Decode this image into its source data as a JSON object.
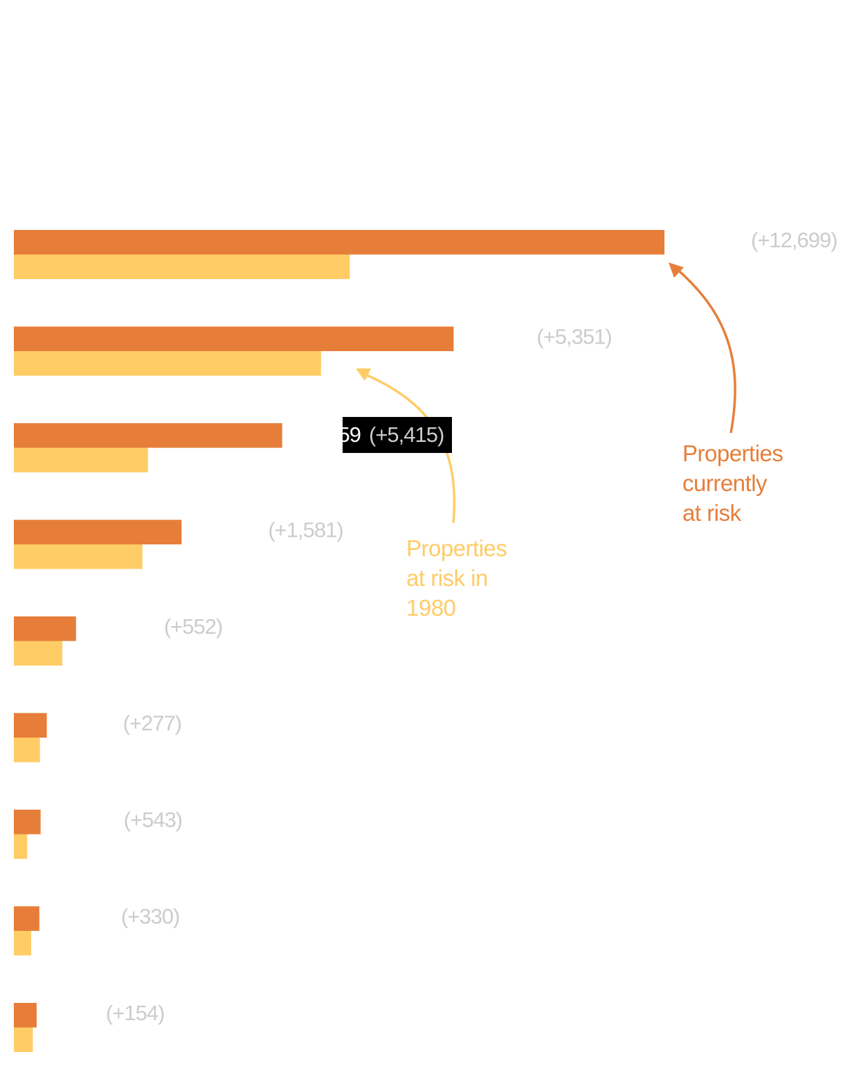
{
  "colors": {
    "current": "#e67e3a",
    "y1980": "#ffcc66",
    "diff_label": "#cccccc",
    "tooltip_bg": "#000000",
    "tooltip_value": "#ffffff",
    "tooltip_diff": "#cccccc"
  },
  "annotations": {
    "current": [
      "Properties",
      "currently",
      "at risk"
    ],
    "y1980": [
      "Properties",
      "at risk in",
      "1980"
    ]
  },
  "tooltip": {
    "row": 2,
    "value_fragment": "59",
    "diff": "(+5,415)"
  },
  "chart_data": {
    "type": "bar",
    "orientation": "horizontal",
    "categories": [
      "",
      "",
      "",
      "",
      "",
      "",
      "",
      "",
      ""
    ],
    "series": [
      {
        "name": "Properties currently at risk",
        "values": [
          26260,
          17750,
          10830,
          6770,
          2510,
          1330,
          1080,
          1030,
          920
        ]
      },
      {
        "name": "Properties at risk in 1980",
        "values": [
          13561,
          12399,
          5415,
          5189,
          1958,
          1053,
          537,
          700,
          766
        ]
      }
    ],
    "labels": [
      "(+12,699)",
      "(+5,351)",
      "(+5,415)",
      "(+1,581)",
      "(+552)",
      "(+277)",
      "(+543)",
      "(+330)",
      "(+154)"
    ],
    "xlim": [
      0,
      26260
    ],
    "grid": false,
    "legend": "annotations"
  }
}
